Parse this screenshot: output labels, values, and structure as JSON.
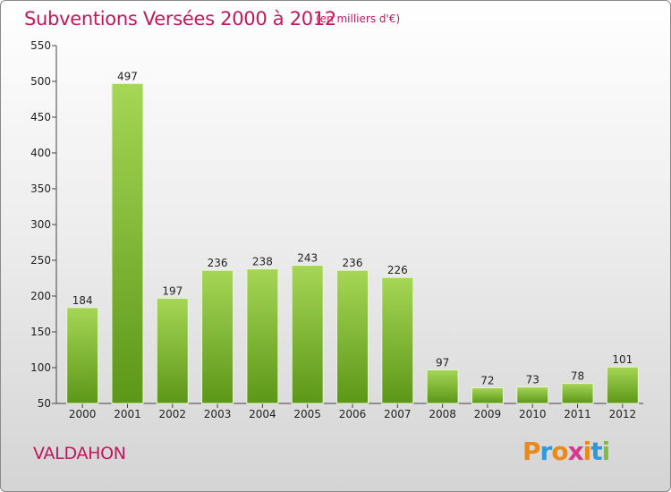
{
  "header": {
    "title": "Subventions Versées 2000 à 2012",
    "subtitle": "(en milliers d'€)"
  },
  "footer": {
    "place": "VALDAHON",
    "brand_letters": [
      "P",
      "r",
      "o",
      "x",
      "i",
      "t",
      "i"
    ],
    "brand_colors": [
      "#e98a1b",
      "#2e9bd6",
      "#e98a1b",
      "#d63a8f",
      "#e98a1b",
      "#2e9bd6",
      "#7dbf3a"
    ]
  },
  "chart_data": {
    "type": "bar",
    "title": "Subventions Versées 2000 à 2012",
    "subtitle": "(en milliers d'€)",
    "categories": [
      "2000",
      "2001",
      "2002",
      "2003",
      "2004",
      "2005",
      "2006",
      "2007",
      "2008",
      "2009",
      "2010",
      "2011",
      "2012"
    ],
    "values": [
      184,
      497,
      197,
      236,
      238,
      243,
      236,
      226,
      97,
      72,
      73,
      78,
      101
    ],
    "ylim": [
      50,
      550
    ],
    "yticks": [
      50,
      100,
      150,
      200,
      250,
      300,
      350,
      400,
      450,
      500,
      550
    ],
    "grid": false,
    "colors": {
      "bar_light": "#9ccf4c",
      "bar_dark": "#5f9a1a",
      "axis": "#444444",
      "text": "#222222",
      "accent": "#c2185b"
    }
  }
}
